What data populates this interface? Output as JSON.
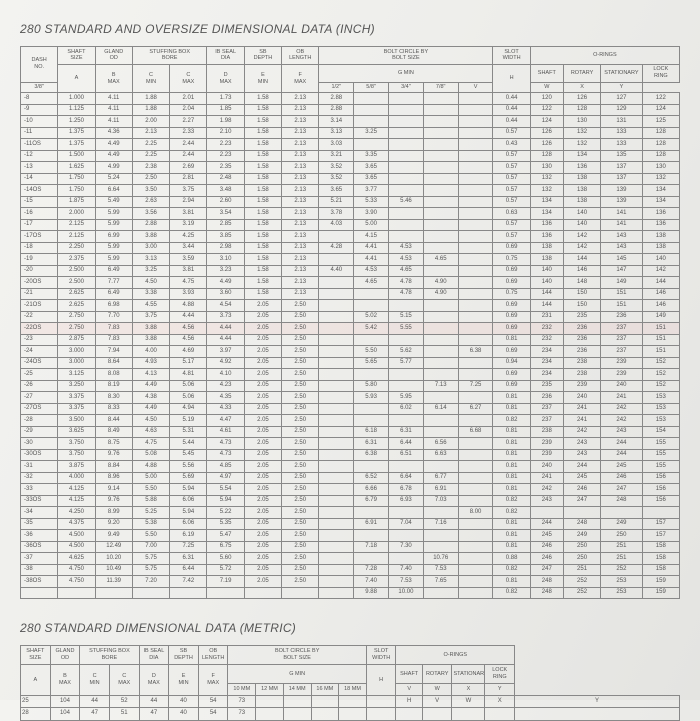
{
  "titles": {
    "inch": "280 STANDARD AND OVERSIZE DIMENSIONAL DATA (INCH)",
    "metric": "280 STANDARD DIMENSIONAL DATA (METRIC)"
  },
  "headers": {
    "dash": "DASH\nNO.",
    "shaft_size": "SHAFT\nSIZE",
    "gland_od": "GLAND\nOD",
    "stuffing": "STUFFING BOX\nBORE",
    "ib_seal": "IB SEAL\nDIA",
    "sb_depth": "SB\nDEPTH",
    "ob_len": "OB\nLENGTH",
    "bolt": "BOLT CIRCLE BY\nBOLT SIZE",
    "slot": "SLOT\nWIDTH",
    "orings": "O-RINGS",
    "shaft": "SHAFT",
    "rotary": "ROTARY",
    "stationary": "STATIONARY",
    "lock": "LOCK\nRING",
    "A": "A",
    "Bmax": "B\nMAX",
    "Cmin": "C\nMIN",
    "Cmax": "C\nMAX",
    "Dmax": "D\nMAX",
    "Emin": "E\nMIN",
    "Fmax": "F\nMAX",
    "Gmin": "G MIN",
    "g38": "3/8\"",
    "g12": "1/2\"",
    "g58": "5/8\"",
    "g34": "3/4\"",
    "g78": "7/8\"",
    "H": "H",
    "V": "V",
    "W": "W",
    "X": "X",
    "Y": "Y",
    "m10": "10 MM",
    "m12": "12 MM",
    "m14": "14 MM",
    "m16": "16 MM",
    "m18": "18 MM"
  },
  "inch_rows": [
    [
      "-8",
      "1.000",
      "4.11",
      "1.88",
      "2.01",
      "1.73",
      "1.58",
      "2.13",
      "2.88",
      "",
      "",
      "",
      "",
      "0.44",
      "120",
      "126",
      "127",
      "122"
    ],
    [
      "-9",
      "1.125",
      "4.11",
      "1.88",
      "2.04",
      "1.85",
      "1.58",
      "2.13",
      "2.88",
      "",
      "",
      "",
      "",
      "0.44",
      "122",
      "128",
      "129",
      "124"
    ],
    [
      "-10",
      "1.250",
      "4.11",
      "2.00",
      "2.27",
      "1.98",
      "1.58",
      "2.13",
      "3.14",
      "",
      "",
      "",
      "",
      "0.44",
      "124",
      "130",
      "131",
      "125"
    ],
    [
      "-11",
      "1.375",
      "4.36",
      "2.13",
      "2.33",
      "2.10",
      "1.58",
      "2.13",
      "3.13",
      "3.25",
      "",
      "",
      "",
      "0.57",
      "126",
      "132",
      "133",
      "128"
    ],
    [
      "-11OS",
      "1.375",
      "4.49",
      "2.25",
      "2.44",
      "2.23",
      "1.58",
      "2.13",
      "3.03",
      "",
      "",
      "",
      "",
      "0.43",
      "126",
      "132",
      "133",
      "128"
    ],
    [
      "-12",
      "1.500",
      "4.49",
      "2.25",
      "2.44",
      "2.23",
      "1.58",
      "2.13",
      "3.21",
      "3.35",
      "",
      "",
      "",
      "0.57",
      "128",
      "134",
      "135",
      "128"
    ],
    [
      "-13",
      "1.625",
      "4.99",
      "2.38",
      "2.69",
      "2.35",
      "1.58",
      "2.13",
      "3.52",
      "3.65",
      "",
      "",
      "",
      "0.57",
      "130",
      "136",
      "137",
      "130"
    ],
    [
      "-14",
      "1.750",
      "5.24",
      "2.50",
      "2.81",
      "2.48",
      "1.58",
      "2.13",
      "3.52",
      "3.65",
      "",
      "",
      "",
      "0.57",
      "132",
      "138",
      "137",
      "132"
    ],
    [
      "-14OS",
      "1.750",
      "6.64",
      "3.50",
      "3.75",
      "3.48",
      "1.58",
      "2.13",
      "3.65",
      "3.77",
      "",
      "",
      "",
      "0.57",
      "132",
      "138",
      "139",
      "134"
    ],
    [
      "-15",
      "1.875",
      "5.49",
      "2.63",
      "2.94",
      "2.60",
      "1.58",
      "2.13",
      "5.21",
      "5.33",
      "5.46",
      "",
      "",
      "0.57",
      "134",
      "138",
      "139",
      "134"
    ],
    [
      "-16",
      "2.000",
      "5.99",
      "3.56",
      "3.81",
      "3.54",
      "1.58",
      "2.13",
      "3.78",
      "3.90",
      "",
      "",
      "",
      "0.63",
      "134",
      "140",
      "141",
      "136"
    ],
    [
      "-17",
      "2.125",
      "5.99",
      "2.88",
      "3.19",
      "2.85",
      "1.58",
      "2.13",
      "4.03",
      "5.00",
      "",
      "",
      "",
      "0.57",
      "136",
      "140",
      "141",
      "136"
    ],
    [
      "-17OS",
      "2.125",
      "6.99",
      "3.88",
      "4.25",
      "3.85",
      "1.58",
      "2.13",
      "",
      "4.15",
      "",
      "",
      "",
      "0.57",
      "136",
      "142",
      "143",
      "138"
    ],
    [
      "-18",
      "2.250",
      "5.99",
      "3.00",
      "3.44",
      "2.98",
      "1.58",
      "2.13",
      "4.28",
      "4.41",
      "4.53",
      "",
      "",
      "0.69",
      "138",
      "142",
      "143",
      "138"
    ],
    [
      "-19",
      "2.375",
      "5.99",
      "3.13",
      "3.59",
      "3.10",
      "1.58",
      "2.13",
      "",
      "4.41",
      "4.53",
      "4.65",
      "",
      "0.75",
      "138",
      "144",
      "145",
      "140"
    ],
    [
      "-20",
      "2.500",
      "6.49",
      "3.25",
      "3.81",
      "3.23",
      "1.58",
      "2.13",
      "4.40",
      "4.53",
      "4.65",
      "",
      "",
      "0.69",
      "140",
      "146",
      "147",
      "142"
    ],
    [
      "-20OS",
      "2.500",
      "7.77",
      "4.50",
      "4.75",
      "4.49",
      "1.58",
      "2.13",
      "",
      "4.65",
      "4.78",
      "4.90",
      "",
      "0.69",
      "140",
      "148",
      "149",
      "144"
    ],
    [
      "-21",
      "2.625",
      "6.49",
      "3.38",
      "3.93",
      "3.60",
      "1.58",
      "2.13",
      "",
      "",
      "4.78",
      "4.90",
      "",
      "0.75",
      "144",
      "150",
      "151",
      "146"
    ],
    [
      "-21OS",
      "2.625",
      "6.98",
      "4.55",
      "4.88",
      "4.54",
      "2.05",
      "2.50",
      "",
      "",
      "",
      "",
      "",
      "0.69",
      "144",
      "150",
      "151",
      "146"
    ],
    [
      "-22",
      "2.750",
      "7.70",
      "3.75",
      "4.44",
      "3.73",
      "2.05",
      "2.50",
      "",
      "5.02",
      "5.15",
      "",
      "",
      "0.69",
      "231",
      "235",
      "236",
      "149"
    ],
    [
      "-22OS",
      "2.750",
      "7.83",
      "3.88",
      "4.56",
      "4.44",
      "2.05",
      "2.50",
      "",
      "5.42",
      "5.55",
      "",
      "",
      "0.69",
      "232",
      "236",
      "237",
      "151"
    ],
    [
      "-23",
      "2.875",
      "7.83",
      "3.88",
      "4.56",
      "4.44",
      "2.05",
      "2.50",
      "",
      "",
      "",
      "",
      "",
      "0.81",
      "232",
      "236",
      "237",
      "151"
    ],
    [
      "-24",
      "3.000",
      "7.94",
      "4.00",
      "4.69",
      "3.97",
      "2.05",
      "2.50",
      "",
      "5.50",
      "5.62",
      "",
      "6.38",
      "0.69",
      "234",
      "236",
      "237",
      "151"
    ],
    [
      "-24OS",
      "3.000",
      "8.64",
      "4.93",
      "5.17",
      "4.92",
      "2.05",
      "2.50",
      "",
      "5.65",
      "5.77",
      "",
      "",
      "0.94",
      "234",
      "238",
      "239",
      "152"
    ],
    [
      "-25",
      "3.125",
      "8.08",
      "4.13",
      "4.81",
      "4.10",
      "2.05",
      "2.50",
      "",
      "",
      "",
      "",
      "",
      "0.69",
      "234",
      "238",
      "239",
      "152"
    ],
    [
      "-26",
      "3.250",
      "8.19",
      "4.49",
      "5.06",
      "4.23",
      "2.05",
      "2.50",
      "",
      "5.80",
      "",
      "7.13",
      "7.25",
      "0.69",
      "235",
      "239",
      "240",
      "152"
    ],
    [
      "-27",
      "3.375",
      "8.30",
      "4.38",
      "5.06",
      "4.35",
      "2.05",
      "2.50",
      "",
      "5.93",
      "5.95",
      "",
      "",
      "0.81",
      "236",
      "240",
      "241",
      "153"
    ],
    [
      "-27OS",
      "3.375",
      "8.33",
      "4.49",
      "4.94",
      "4.33",
      "2.05",
      "2.50",
      "",
      "",
      "6.02",
      "6.14",
      "6.27",
      "0.81",
      "237",
      "241",
      "242",
      "153"
    ],
    [
      "-28",
      "3.500",
      "8.44",
      "4.50",
      "5.19",
      "4.47",
      "2.05",
      "2.50",
      "",
      "",
      "",
      "",
      "",
      "0.82",
      "237",
      "241",
      "242",
      "153"
    ],
    [
      "-29",
      "3.625",
      "8.49",
      "4.63",
      "5.31",
      "4.61",
      "2.05",
      "2.50",
      "",
      "6.18",
      "6.31",
      "",
      "6.68",
      "0.81",
      "238",
      "242",
      "243",
      "154"
    ],
    [
      "-30",
      "3.750",
      "8.75",
      "4.75",
      "5.44",
      "4.73",
      "2.05",
      "2.50",
      "",
      "6.31",
      "6.44",
      "6.56",
      "",
      "0.81",
      "239",
      "243",
      "244",
      "155"
    ],
    [
      "-30OS",
      "3.750",
      "9.76",
      "5.08",
      "5.45",
      "4.73",
      "2.05",
      "2.50",
      "",
      "6.38",
      "6.51",
      "6.63",
      "",
      "0.81",
      "239",
      "243",
      "244",
      "155"
    ],
    [
      "-31",
      "3.875",
      "8.84",
      "4.88",
      "5.56",
      "4.85",
      "2.05",
      "2.50",
      "",
      "",
      "",
      "",
      "",
      "0.81",
      "240",
      "244",
      "245",
      "155"
    ],
    [
      "-32",
      "4.000",
      "8.96",
      "5.00",
      "5.69",
      "4.97",
      "2.05",
      "2.50",
      "",
      "6.52",
      "6.64",
      "6.77",
      "",
      "0.81",
      "241",
      "245",
      "246",
      "156"
    ],
    [
      "-33",
      "4.125",
      "9.14",
      "5.50",
      "5.94",
      "5.54",
      "2.05",
      "2.50",
      "",
      "6.66",
      "6.78",
      "6.91",
      "",
      "0.81",
      "242",
      "246",
      "247",
      "156"
    ],
    [
      "-33OS",
      "4.125",
      "9.76",
      "5.88",
      "6.06",
      "5.94",
      "2.05",
      "2.50",
      "",
      "6.79",
      "6.93",
      "7.03",
      "",
      "0.82",
      "243",
      "247",
      "248",
      "156"
    ],
    [
      "-34",
      "4.250",
      "8.99",
      "5.25",
      "5.94",
      "5.22",
      "2.05",
      "2.50",
      "",
      "",
      "",
      "",
      "8.00",
      "0.82",
      "",
      "",
      "",
      ""
    ],
    [
      "-35",
      "4.375",
      "9.20",
      "5.38",
      "6.06",
      "5.35",
      "2.05",
      "2.50",
      "",
      "6.91",
      "7.04",
      "7.16",
      "",
      "0.81",
      "244",
      "248",
      "249",
      "157"
    ],
    [
      "-36",
      "4.500",
      "9.49",
      "5.50",
      "6.19",
      "5.47",
      "2.05",
      "2.50",
      "",
      "",
      "",
      "",
      "",
      "0.81",
      "245",
      "249",
      "250",
      "157"
    ],
    [
      "-36OS",
      "4.500",
      "12.49",
      "7.00",
      "7.25",
      "6.75",
      "2.05",
      "2.50",
      "",
      "7.18",
      "7.30",
      "",
      "",
      "0.81",
      "246",
      "250",
      "251",
      "158"
    ],
    [
      "-37",
      "4.625",
      "10.20",
      "5.75",
      "6.31",
      "5.60",
      "2.05",
      "2.50",
      "",
      "",
      "",
      "10.76",
      "",
      "0.88",
      "246",
      "250",
      "251",
      "158"
    ],
    [
      "-38",
      "4.750",
      "10.49",
      "5.75",
      "6.44",
      "5.72",
      "2.05",
      "2.50",
      "",
      "7.28",
      "7.40",
      "7.53",
      "",
      "0.82",
      "247",
      "251",
      "252",
      "158"
    ],
    [
      "-38OS",
      "4.750",
      "11.39",
      "7.20",
      "7.42",
      "7.19",
      "2.05",
      "2.50",
      "",
      "7.40",
      "7.53",
      "7.65",
      "",
      "0.81",
      "248",
      "252",
      "253",
      "159"
    ],
    [
      "",
      "",
      "",
      "",
      "",
      "",
      "",
      "",
      "",
      "9.88",
      "10.00",
      "",
      "",
      "0.82",
      "248",
      "252",
      "253",
      "159"
    ]
  ],
  "highlight_row": 20,
  "metric_rows": [
    [
      "25",
      "104",
      "44",
      "52",
      "44",
      "40",
      "54",
      "73",
      "",
      "",
      "",
      "",
      "",
      "H",
      "V",
      "W",
      "X",
      "Y"
    ],
    [
      "28",
      "104",
      "47",
      "51",
      "47",
      "40",
      "54",
      "73",
      "",
      "",
      "",
      "",
      "",
      "",
      "",
      "",
      "",
      ""
    ]
  ],
  "colors": {
    "line": "#cc3a2a",
    "bg": "#ececea",
    "border": "#888888",
    "text": "#555555"
  }
}
